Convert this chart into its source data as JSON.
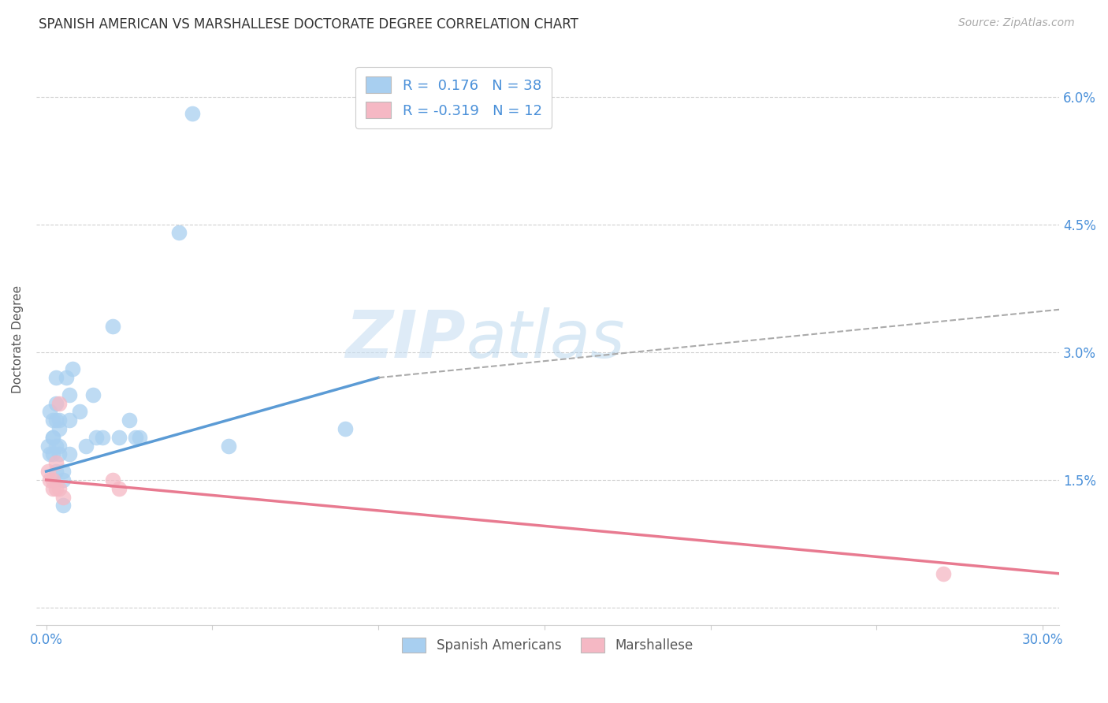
{
  "title": "SPANISH AMERICAN VS MARSHALLESE DOCTORATE DEGREE CORRELATION CHART",
  "source": "Source: ZipAtlas.com",
  "ylabel_ticks": [
    0.0,
    0.015,
    0.03,
    0.045,
    0.06
  ],
  "ylabel_labels": [
    "",
    "1.5%",
    "3.0%",
    "4.5%",
    "6.0%"
  ],
  "xlim": [
    -0.003,
    0.305
  ],
  "ylim": [
    -0.002,
    0.065
  ],
  "watermark_zip": "ZIP",
  "watermark_atlas": "atlas",
  "legend_label1": "Spanish Americans",
  "legend_label2": "Marshallese",
  "blue_color": "#a8cff0",
  "pink_color": "#f5b8c4",
  "blue_line_color": "#5b9bd5",
  "pink_line_color": "#e87a90",
  "dashed_line_color": "#aaaaaa",
  "spanish_x": [
    0.0005,
    0.001,
    0.001,
    0.002,
    0.002,
    0.002,
    0.002,
    0.003,
    0.003,
    0.003,
    0.003,
    0.003,
    0.004,
    0.004,
    0.004,
    0.004,
    0.005,
    0.005,
    0.005,
    0.006,
    0.007,
    0.007,
    0.007,
    0.008,
    0.01,
    0.012,
    0.014,
    0.015,
    0.017,
    0.02,
    0.022,
    0.025,
    0.027,
    0.028,
    0.04,
    0.044,
    0.055,
    0.09
  ],
  "spanish_y": [
    0.019,
    0.023,
    0.018,
    0.022,
    0.02,
    0.02,
    0.018,
    0.027,
    0.024,
    0.022,
    0.019,
    0.016,
    0.022,
    0.021,
    0.019,
    0.018,
    0.016,
    0.015,
    0.012,
    0.027,
    0.025,
    0.022,
    0.018,
    0.028,
    0.023,
    0.019,
    0.025,
    0.02,
    0.02,
    0.033,
    0.02,
    0.022,
    0.02,
    0.02,
    0.044,
    0.058,
    0.019,
    0.021
  ],
  "marshallese_x": [
    0.0005,
    0.001,
    0.002,
    0.002,
    0.003,
    0.003,
    0.004,
    0.004,
    0.005,
    0.02,
    0.022,
    0.27
  ],
  "marshallese_y": [
    0.016,
    0.015,
    0.015,
    0.014,
    0.017,
    0.014,
    0.024,
    0.014,
    0.013,
    0.015,
    0.014,
    0.004
  ],
  "blue_trend_x": [
    0.0,
    0.1
  ],
  "blue_trend_y": [
    0.016,
    0.027
  ],
  "dashed_trend_x": [
    0.1,
    0.305
  ],
  "dashed_trend_y": [
    0.027,
    0.035
  ],
  "pink_trend_x": [
    0.0,
    0.305
  ],
  "pink_trend_y": [
    0.015,
    0.004
  ]
}
